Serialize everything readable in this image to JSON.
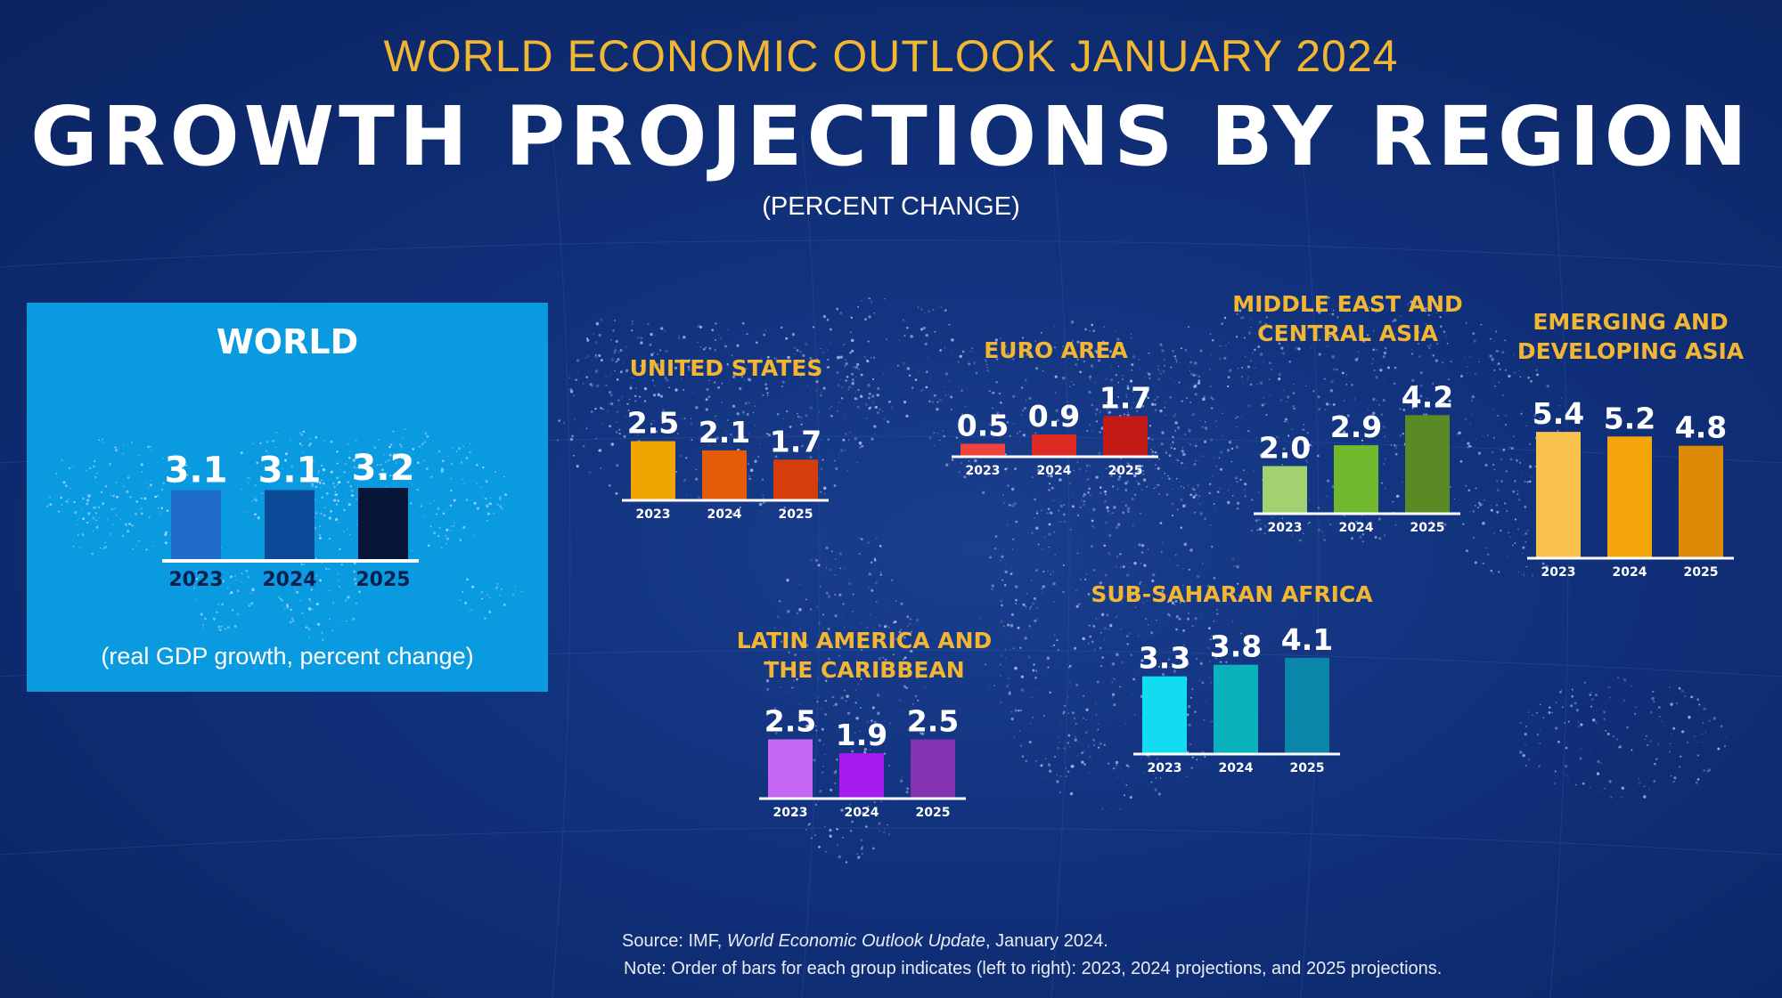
{
  "header": {
    "kicker": "WORLD ECONOMIC OUTLOOK JANUARY 2024",
    "title": "GROWTH PROJECTIONS BY REGION",
    "subtitle": "(PERCENT CHANGE)"
  },
  "world_panel": {
    "caption": "(real GDP growth, percent change)"
  },
  "footer": {
    "source_prefix": "Source:  IMF, ",
    "source_title": "World Economic Outlook Update",
    "source_suffix": ", January 2024.",
    "note": "Note:  Order of bars for each group indicates (left to right): 2023, 2024 projections, and 2025 projections."
  },
  "colors": {
    "background": "#10307a",
    "label_gold": "#f2b632",
    "world_panel": "#0a9ae0"
  },
  "chart_data": [
    {
      "type": "bar",
      "id": "world",
      "title": "WORLD",
      "categories": [
        "2023",
        "2024",
        "2025"
      ],
      "values": [
        3.1,
        3.1,
        3.2
      ],
      "colors": [
        "#1f6ccd",
        "#0a4a96",
        "#061538"
      ]
    },
    {
      "type": "bar",
      "id": "us",
      "title": "UNITED STATES",
      "categories": [
        "2023",
        "2024",
        "2025"
      ],
      "values": [
        2.5,
        2.1,
        1.7
      ],
      "colors": [
        "#f0a500",
        "#e55b0a",
        "#d63d0c"
      ]
    },
    {
      "type": "bar",
      "id": "euro",
      "title": "EURO AREA",
      "categories": [
        "2023",
        "2024",
        "2025"
      ],
      "values": [
        0.5,
        0.9,
        1.7
      ],
      "colors": [
        "#f0443a",
        "#dd2a22",
        "#c21a14"
      ]
    },
    {
      "type": "bar",
      "id": "mecasia",
      "title": "MIDDLE EAST AND\nCENTRAL ASIA",
      "categories": [
        "2023",
        "2024",
        "2025"
      ],
      "values": [
        2.0,
        2.9,
        4.2
      ],
      "colors": [
        "#a2d172",
        "#70b82c",
        "#5a8a24"
      ]
    },
    {
      "type": "bar",
      "id": "edasia",
      "title": "EMERGING AND\nDEVELOPING ASIA",
      "categories": [
        "2023",
        "2024",
        "2025"
      ],
      "values": [
        5.4,
        5.2,
        4.8
      ],
      "colors": [
        "#f9c24c",
        "#f4a50a",
        "#dd8a06"
      ]
    },
    {
      "type": "bar",
      "id": "latam",
      "title": "LATIN AMERICA AND\nTHE CARIBBEAN",
      "categories": [
        "2023",
        "2024",
        "2025"
      ],
      "values": [
        2.5,
        1.9,
        2.5
      ],
      "colors": [
        "#c668f5",
        "#a61cf0",
        "#8533b2"
      ]
    },
    {
      "type": "bar",
      "id": "ssa",
      "title": "SUB-SAHARAN AFRICA",
      "categories": [
        "2023",
        "2024",
        "2025"
      ],
      "values": [
        3.3,
        3.8,
        4.1
      ],
      "colors": [
        "#12dcf0",
        "#0ab2bc",
        "#0c86a8"
      ]
    }
  ]
}
